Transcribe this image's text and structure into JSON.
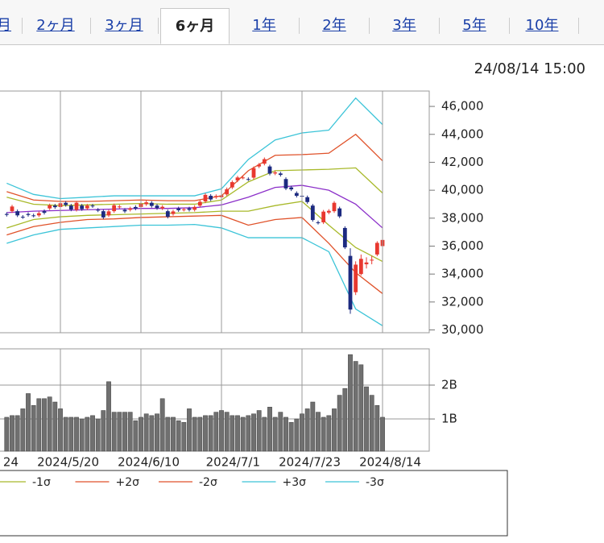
{
  "tabs": [
    "月",
    "2ヶ月",
    "3ヶ月",
    "6ヶ月",
    "1年",
    "2年",
    "3年",
    "5年",
    "10年"
  ],
  "chart_data": {
    "type": "candlestick",
    "timestamp": "24/08/14 15:00",
    "x": [
      "2024/5/2",
      "2024/5/7",
      "2024/5/8",
      "2024/5/9",
      "2024/5/10",
      "2024/5/13",
      "2024/5/14",
      "2024/5/15",
      "2024/5/16",
      "2024/5/17",
      "2024/5/20",
      "2024/5/21",
      "2024/5/22",
      "2024/5/23",
      "2024/5/24",
      "2024/5/27",
      "2024/5/28",
      "2024/5/29",
      "2024/5/30",
      "2024/5/31",
      "2024/6/3",
      "2024/6/4",
      "2024/6/5",
      "2024/6/6",
      "2024/6/7",
      "2024/6/10",
      "2024/6/11",
      "2024/6/12",
      "2024/6/13",
      "2024/6/14",
      "2024/6/17",
      "2024/6/18",
      "2024/6/19",
      "2024/6/20",
      "2024/6/21",
      "2024/6/24",
      "2024/6/25",
      "2024/6/26",
      "2024/6/27",
      "2024/6/28",
      "2024/7/1",
      "2024/7/2",
      "2024/7/3",
      "2024/7/4",
      "2024/7/5",
      "2024/7/8",
      "2024/7/9",
      "2024/7/10",
      "2024/7/11",
      "2024/7/12",
      "2024/7/16",
      "2024/7/17",
      "2024/7/18",
      "2024/7/19",
      "2024/7/22",
      "2024/7/23",
      "2024/7/24",
      "2024/7/25",
      "2024/7/26",
      "2024/7/29",
      "2024/7/30",
      "2024/7/31",
      "2024/8/1",
      "2024/8/2",
      "2024/8/5",
      "2024/8/6",
      "2024/8/7",
      "2024/8/8",
      "2024/8/9",
      "2024/8/13",
      "2024/8/14"
    ],
    "open": [
      38300,
      38500,
      38500,
      38100,
      38300,
      38200,
      38200,
      38500,
      38700,
      38900,
      38800,
      39100,
      38900,
      38600,
      38900,
      38700,
      38900,
      38600,
      38500,
      38200,
      38500,
      38800,
      38600,
      38600,
      38800,
      38800,
      39000,
      39100,
      38900,
      38700,
      38500,
      38300,
      38700,
      38600,
      38700,
      38600,
      38900,
      39200,
      39600,
      39500,
      39500,
      39700,
      40200,
      40700,
      40900,
      40800,
      40900,
      41700,
      41900,
      41700,
      41200,
      41200,
      40800,
      40200,
      39800,
      39600,
      39500,
      38900,
      37700,
      37700,
      38400,
      38500,
      38700,
      37300,
      35300,
      32700,
      34000,
      34700,
      35000,
      35400,
      36000
    ],
    "high": [
      38420,
      38955,
      38620,
      38220,
      38420,
      38320,
      38476,
      38620,
      39040,
      39020,
      39189,
      39220,
      39020,
      39223,
      39020,
      39020,
      39020,
      38720,
      38620,
      38607,
      39043,
      38957,
      38720,
      38823,
      38920,
      39158,
      39254,
      39220,
      39020,
      38934,
      38620,
      38602,
      38820,
      38753,
      38820,
      38924,
      39293,
      39787,
      39720,
      39703,
      39751,
      40194,
      40700,
      41033,
      41032,
      40920,
      41700,
      41951,
      42344,
      41820,
      41395,
      41320,
      40920,
      40320,
      39920,
      39720,
      39620,
      39020,
      37820,
      38588,
      38645,
      39221,
      38820,
      37420,
      35849,
      34911,
      35400,
      35200,
      35300,
      36350,
      36560
    ],
    "low": [
      38116,
      38380,
      38082,
      37953,
      38109,
      38059,
      38080,
      38265,
      38580,
      38667,
      38680,
      38826,
      38497,
      38480,
      38526,
      38580,
      38735,
      38436,
      37934,
      38080,
      38380,
      38680,
      38370,
      38480,
      38563,
      38680,
      38880,
      38756,
      38600,
      38580,
      37982,
      38180,
      38450,
      38480,
      38476,
      38480,
      38780,
      39080,
      39221,
      39380,
      39380,
      39580,
      40080,
      40580,
      40780,
      40660,
      40780,
      41580,
      41780,
      41070,
      41080,
      40977,
      40006,
      39943,
      39479,
      39474,
      39034,
      37749,
      37547,
      37580,
      38280,
      38380,
      38006,
      35789,
      31156,
      32500,
      33900,
      34400,
      34700,
      35280,
      35900
    ],
    "close": [
      38236,
      38835,
      38202,
      38073,
      38229,
      38179,
      38356,
      38385,
      38920,
      38787,
      39069,
      38946,
      38617,
      39103,
      38646,
      38900,
      38855,
      38556,
      38054,
      38487,
      38923,
      38837,
      38490,
      38703,
      38683,
      39038,
      39134,
      38876,
      38720,
      38814,
      38102,
      38482,
      38570,
      38633,
      38596,
      38804,
      39173,
      39667,
      39341,
      39583,
      39631,
      40074,
      40580,
      40913,
      40912,
      40780,
      41580,
      41831,
      42224,
      41190,
      41275,
      41097,
      40126,
      40063,
      39599,
      39594,
      39154,
      37869,
      37667,
      38468,
      38525,
      39101,
      38126,
      35909,
      31458,
      34675,
      35089,
      34831,
      35025,
      36232,
      36442
    ],
    "up_color": "#e8382f",
    "down_color": "#1c2a80",
    "ylim": [
      29800,
      47100
    ],
    "yticks": [
      {
        "value": 46000,
        "label": "46,000"
      },
      {
        "value": 44000,
        "label": "44,000"
      },
      {
        "value": 42000,
        "label": "42,000"
      },
      {
        "value": 40000,
        "label": "40,000"
      },
      {
        "value": 38000,
        "label": "38,000"
      },
      {
        "value": 36000,
        "label": "36,000"
      },
      {
        "value": 34000,
        "label": "34,000"
      },
      {
        "value": 32000,
        "label": "32,000"
      },
      {
        "value": 30000,
        "label": "30,000"
      }
    ],
    "xticks": [
      {
        "value": "2024/4/24",
        "label": "24"
      },
      "2024/5/20",
      "2024/6/10",
      "2024/7/1",
      "2024/7/23",
      "2024/8/14"
    ],
    "grid": true,
    "volume": {
      "color": "#707070",
      "values": [
        1.05,
        1.1,
        1.1,
        1.3,
        1.75,
        1.4,
        1.6,
        1.6,
        1.65,
        1.5,
        1.3,
        1.05,
        1.05,
        1.05,
        1.0,
        1.05,
        1.1,
        1.0,
        1.25,
        2.1,
        1.2,
        1.2,
        1.2,
        1.2,
        0.95,
        1.05,
        1.15,
        1.1,
        1.15,
        1.6,
        1.05,
        1.05,
        0.95,
        0.9,
        1.3,
        1.05,
        1.05,
        1.1,
        1.1,
        1.2,
        1.25,
        1.2,
        1.1,
        1.1,
        1.05,
        1.1,
        1.15,
        1.25,
        1.05,
        1.35,
        1.05,
        1.2,
        1.05,
        0.9,
        1.0,
        1.15,
        1.3,
        1.5,
        1.2,
        1.05,
        1.1,
        1.3,
        1.7,
        1.9,
        2.9,
        2.7,
        2.6,
        1.95,
        1.7,
        1.4,
        1.05
      ],
      "ylim": [
        0.05,
        3.07
      ],
      "yticks": [
        {
          "value": 2,
          "label": "2B"
        },
        {
          "value": 1,
          "label": "1B"
        }
      ]
    },
    "bands": {
      "x": [
        "2024/5/2",
        "2024/5/13",
        "2024/5/20",
        "2024/5/27",
        "2024/6/3",
        "2024/6/10",
        "2024/6/17",
        "2024/6/24",
        "2024/7/1",
        "2024/7/8",
        "2024/7/16",
        "2024/7/23",
        "2024/7/30",
        "2024/8/6",
        "2024/8/14"
      ],
      "series": [
        {
          "color": "#8b2fc9",
          "values": [
            38400,
            38500,
            38550,
            38600,
            38650,
            38700,
            38700,
            38750,
            38950,
            39500,
            40200,
            40350,
            40000,
            39000,
            37300
          ]
        },
        {
          "color": "#a8b92a",
          "values": [
            39500,
            39000,
            38900,
            38950,
            39000,
            39050,
            39000,
            39000,
            39300,
            40600,
            41400,
            41450,
            41500,
            41600,
            39800
          ]
        },
        {
          "name": "-1σ",
          "color": "#a8b92a",
          "values": [
            37300,
            37900,
            38100,
            38200,
            38250,
            38300,
            38350,
            38400,
            38500,
            38500,
            38900,
            39200,
            37500,
            35900,
            34900
          ]
        },
        {
          "name": "+2σ",
          "color": "#e0522a",
          "values": [
            39900,
            39300,
            39200,
            39200,
            39250,
            39300,
            39250,
            39250,
            39600,
            41400,
            42500,
            42550,
            42650,
            44000,
            42100
          ]
        },
        {
          "name": "-2σ",
          "color": "#e0522a",
          "values": [
            36800,
            37400,
            37700,
            37900,
            37950,
            38050,
            38100,
            38150,
            38200,
            37500,
            37900,
            38050,
            36200,
            34100,
            32600
          ]
        },
        {
          "name": "+3σ",
          "color": "#3cc4d8",
          "values": [
            40500,
            39700,
            39400,
            39500,
            39600,
            39600,
            39600,
            39600,
            40100,
            42200,
            43600,
            44100,
            44300,
            46600,
            44700
          ]
        },
        {
          "name": "-3σ",
          "color": "#3cc4d8",
          "values": [
            36200,
            36800,
            37200,
            37300,
            37400,
            37500,
            37500,
            37550,
            37300,
            36600,
            36600,
            36600,
            35600,
            31500,
            30300
          ]
        }
      ]
    }
  }
}
